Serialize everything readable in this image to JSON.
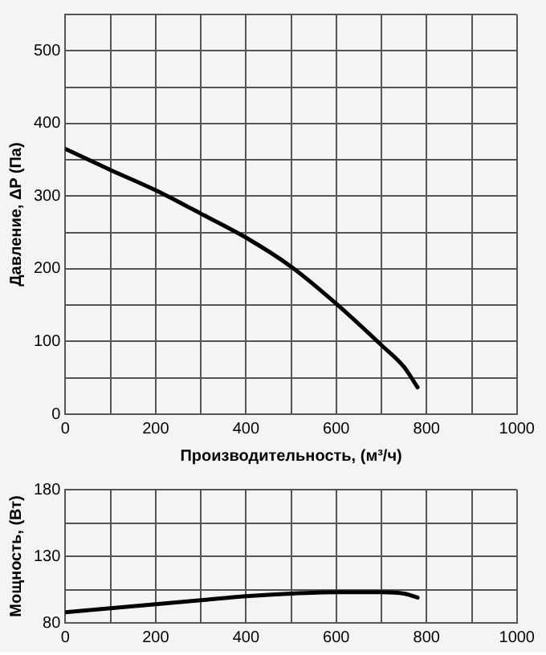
{
  "chart_data": [
    {
      "type": "line",
      "xlabel": "Производительность, (м³/ч)",
      "ylabel": "Давление, ΔP (Па)",
      "x": [
        0,
        100,
        200,
        300,
        400,
        500,
        600,
        700,
        750,
        780
      ],
      "series": [
        {
          "color": "#000000",
          "values": [
            365,
            336,
            308,
            276,
            243,
            203,
            152,
            95,
            65,
            37
          ]
        }
      ],
      "xlim": [
        0,
        1000
      ],
      "xticks": [
        0,
        {
          "value": 100,
          "label": null
        },
        200,
        {
          "value": 300,
          "label": null
        },
        400,
        {
          "value": 500,
          "label": null
        },
        600,
        {
          "value": 700,
          "label": null
        },
        800,
        {
          "value": 900,
          "label": null
        },
        1000
      ],
      "ylim": [
        0,
        550
      ],
      "yticks": [
        0,
        {
          "value": 50,
          "label": null
        },
        100,
        {
          "value": 150,
          "label": null
        },
        200,
        {
          "value": 250,
          "label": null
        },
        300,
        {
          "value": 350,
          "label": null
        },
        400,
        {
          "value": 450,
          "label": null
        },
        500,
        {
          "value": 550,
          "label": null
        }
      ],
      "grid": true,
      "marker": "none",
      "line_style": "solid",
      "legend": false
    },
    {
      "type": "line",
      "ylabel": "Мощность, (Вт)",
      "x": [
        0,
        100,
        200,
        300,
        400,
        500,
        600,
        700,
        750,
        780
      ],
      "series": [
        {
          "color": "#000000",
          "values": [
            88,
            91,
            94,
            97,
            100,
            102,
            103,
            103,
            102,
            99
          ]
        }
      ],
      "xlim": [
        0,
        1000
      ],
      "xticks": [
        0,
        {
          "value": 100,
          "label": null
        },
        200,
        {
          "value": 300,
          "label": null
        },
        400,
        {
          "value": 500,
          "label": null
        },
        600,
        {
          "value": 700,
          "label": null
        },
        800,
        {
          "value": 900,
          "label": null
        },
        1000
      ],
      "ylim": [
        80,
        180
      ],
      "yticks": [
        80,
        {
          "value": 105,
          "label": null
        },
        130,
        {
          "value": 155,
          "label": null
        },
        180
      ],
      "grid": true,
      "marker": "none",
      "line_style": "solid",
      "legend": false
    }
  ]
}
